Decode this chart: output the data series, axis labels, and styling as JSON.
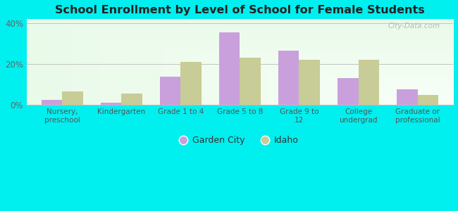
{
  "title": "School Enrollment by Level of School for Female Students",
  "categories": [
    "Nursery,\npreschool",
    "Kindergarten",
    "Grade 1 to 4",
    "Grade 5 to 8",
    "Grade 9 to\n12",
    "College\nundergrad",
    "Graduate or\nprofessional"
  ],
  "garden_city": [
    2.5,
    1.2,
    14.0,
    35.5,
    26.5,
    13.0,
    7.5
  ],
  "idaho": [
    6.5,
    5.5,
    21.0,
    23.0,
    22.0,
    22.0,
    5.0
  ],
  "garden_city_color": "#c9a0dc",
  "idaho_color": "#c8cc96",
  "background_color": "#00efef",
  "ylim": [
    0,
    42
  ],
  "yticks": [
    0,
    20,
    40
  ],
  "ytick_labels": [
    "0%",
    "20%",
    "40%"
  ],
  "bar_width": 0.35,
  "legend_garden_city": "Garden City",
  "legend_idaho": "Idaho",
  "watermark": "City-Data.com"
}
